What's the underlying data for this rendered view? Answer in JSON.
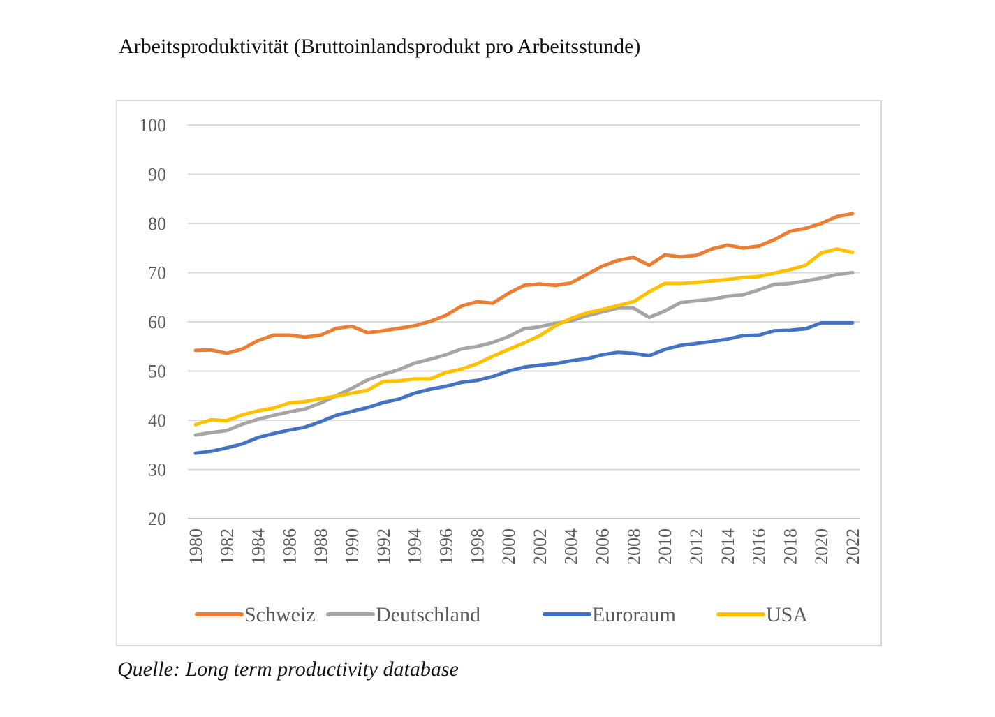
{
  "title": "Arbeitsproduktivität (Bruttoinlandsprodukt pro Arbeitsstunde)",
  "source": "Quelle: Long term productivity database",
  "chart_data": {
    "type": "line",
    "ylim": [
      20,
      100
    ],
    "yticks": [
      "20",
      "30",
      "40",
      "50",
      "60",
      "70",
      "80",
      "90",
      "100"
    ],
    "grid": "horizontal",
    "legend_position": "bottom",
    "x": [
      1980,
      1981,
      1982,
      1983,
      1984,
      1985,
      1986,
      1987,
      1988,
      1989,
      1990,
      1991,
      1992,
      1993,
      1994,
      1995,
      1996,
      1997,
      1998,
      1999,
      2000,
      2001,
      2002,
      2003,
      2004,
      2005,
      2006,
      2007,
      2008,
      2009,
      2010,
      2011,
      2012,
      2013,
      2014,
      2015,
      2016,
      2017,
      2018,
      2019,
      2020,
      2021,
      2022
    ],
    "xtick_labels": [
      "1980",
      "1982",
      "1984",
      "1986",
      "1988",
      "1990",
      "1992",
      "1994",
      "1996",
      "1998",
      "2000",
      "2002",
      "2004",
      "2006",
      "2008",
      "2010",
      "2012",
      "2014",
      "2016",
      "2018",
      "2020",
      "2022"
    ],
    "series": [
      {
        "name": "Schweiz",
        "color": "#ED7D31",
        "values": [
          54.2,
          54.3,
          53.6,
          54.5,
          56.2,
          57.3,
          57.3,
          56.9,
          57.3,
          58.7,
          59.1,
          57.8,
          58.2,
          58.7,
          59.2,
          60.1,
          61.3,
          63.2,
          64.1,
          63.8,
          65.8,
          67.4,
          67.7,
          67.4,
          67.9,
          69.6,
          71.3,
          72.5,
          73.1,
          71.5,
          73.6,
          73.2,
          73.5,
          74.8,
          75.6,
          75.0,
          75.4,
          76.7,
          78.4,
          79.0,
          80.0,
          81.4,
          82.0
        ]
      },
      {
        "name": "Deutschland",
        "color": "#A5A5A5",
        "values": [
          37.0,
          37.5,
          37.9,
          39.2,
          40.2,
          41.0,
          41.7,
          42.3,
          43.5,
          45.0,
          46.5,
          48.2,
          49.3,
          50.3,
          51.6,
          52.4,
          53.3,
          54.5,
          55.0,
          55.8,
          57.0,
          58.6,
          59.0,
          59.7,
          60.2,
          61.2,
          62.0,
          62.8,
          62.8,
          60.9,
          62.2,
          63.9,
          64.3,
          64.6,
          65.2,
          65.5,
          66.5,
          67.6,
          67.8,
          68.3,
          68.9,
          69.6,
          70.0
        ]
      },
      {
        "name": "Euroraum",
        "color": "#4472C4",
        "values": [
          33.3,
          33.7,
          34.4,
          35.2,
          36.5,
          37.3,
          38.0,
          38.6,
          39.7,
          41.0,
          41.8,
          42.6,
          43.6,
          44.3,
          45.5,
          46.3,
          46.9,
          47.7,
          48.1,
          48.9,
          50.0,
          50.8,
          51.2,
          51.5,
          52.1,
          52.5,
          53.3,
          53.8,
          53.6,
          53.1,
          54.4,
          55.2,
          55.6,
          56.0,
          56.5,
          57.2,
          57.3,
          58.2,
          58.3,
          58.6,
          59.8,
          59.8,
          59.8
        ]
      },
      {
        "name": "USA",
        "color": "#FFC000",
        "values": [
          39.1,
          40.1,
          39.9,
          41.1,
          41.9,
          42.5,
          43.5,
          43.8,
          44.4,
          44.9,
          45.5,
          46.1,
          47.9,
          48.0,
          48.4,
          48.4,
          49.7,
          50.4,
          51.5,
          53.0,
          54.4,
          55.7,
          57.2,
          59.2,
          60.7,
          61.8,
          62.5,
          63.3,
          64.1,
          66.1,
          67.8,
          67.8,
          68.0,
          68.3,
          68.6,
          69.0,
          69.2,
          69.9,
          70.6,
          71.5,
          74.0,
          74.8,
          74.1
        ]
      }
    ]
  }
}
